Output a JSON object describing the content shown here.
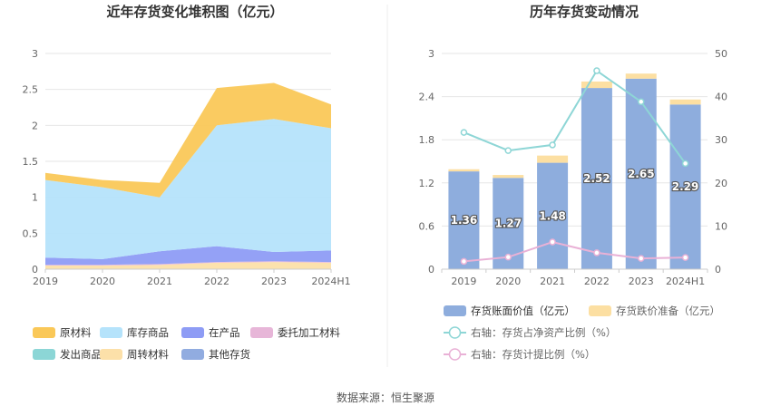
{
  "source_text": "数据来源：恒生聚源",
  "chart_data": [
    {
      "type": "area",
      "stacked": true,
      "title": "近年存货变化堆积图（亿元）",
      "categories": [
        "2019",
        "2020",
        "2021",
        "2022",
        "2023",
        "2024H1"
      ],
      "ylim": [
        0,
        3
      ],
      "yticks": [
        "0",
        "0.5",
        "1",
        "1.5",
        "2",
        "2.5",
        "3"
      ],
      "grid": true,
      "legend_position": "bottom",
      "series": [
        {
          "name": "原材料",
          "color": "#FAC858",
          "values": [
            0.1,
            0.1,
            0.2,
            0.52,
            0.5,
            0.33
          ]
        },
        {
          "name": "库存商品",
          "color": "#B5E3FB",
          "values": [
            1.08,
            1.0,
            0.75,
            1.68,
            1.85,
            1.7
          ]
        },
        {
          "name": "在产品",
          "color": "#8E9CF5",
          "values": [
            0.1,
            0.08,
            0.18,
            0.22,
            0.13,
            0.16
          ]
        },
        {
          "name": "委托加工材料",
          "color": "#E7B6D8",
          "values": [
            0.01,
            0.01,
            0.01,
            0.01,
            0.01,
            0.01
          ]
        },
        {
          "name": "发出商品",
          "color": "#8CD6D6",
          "values": [
            0.0,
            0.0,
            0.0,
            0.0,
            0.0,
            0.0
          ]
        },
        {
          "name": "周转材料",
          "color": "#FCE0A9",
          "values": [
            0.05,
            0.05,
            0.06,
            0.09,
            0.1,
            0.09
          ]
        },
        {
          "name": "其他存货",
          "color": "#91ACE0",
          "values": [
            0.0,
            0.0,
            0.0,
            0.0,
            0.0,
            0.0
          ]
        }
      ]
    },
    {
      "type": "bar",
      "title": "历年存货变动情况",
      "categories": [
        "2019",
        "2020",
        "2021",
        "2022",
        "2023",
        "2024H1"
      ],
      "ylim": [
        0,
        3
      ],
      "yticks": [
        "0",
        "0.6",
        "1.2",
        "1.8",
        "2.4",
        "3"
      ],
      "y2lim": [
        0,
        50
      ],
      "y2ticks": [
        "0",
        "10",
        "20",
        "30",
        "40",
        "50"
      ],
      "grid": true,
      "legend_position": "bottom",
      "series": [
        {
          "name": "存货账面价值（亿元）",
          "color": "#8EADDD",
          "kind": "bar",
          "axis": "left",
          "values": [
            1.36,
            1.27,
            1.48,
            2.52,
            2.65,
            2.29
          ],
          "labels": [
            "1.36",
            "1.27",
            "1.48",
            "2.52",
            "2.65",
            "2.29"
          ]
        },
        {
          "name": "存货跌价准备（亿元）",
          "color": "#FCDFA2",
          "kind": "bar-stack",
          "axis": "left",
          "values": [
            0.03,
            0.04,
            0.1,
            0.09,
            0.07,
            0.07
          ]
        },
        {
          "name": "右轴：存货占净资产比例（%）",
          "color": "#8ED6D6",
          "kind": "line",
          "axis": "right",
          "values": [
            31.7,
            27.5,
            28.8,
            46.0,
            38.8,
            24.5
          ]
        },
        {
          "name": "右轴：存货计提比例（%）",
          "color": "#E9B1D6",
          "kind": "line",
          "axis": "right",
          "values": [
            1.8,
            2.8,
            6.3,
            3.8,
            2.5,
            2.7
          ]
        }
      ]
    }
  ]
}
